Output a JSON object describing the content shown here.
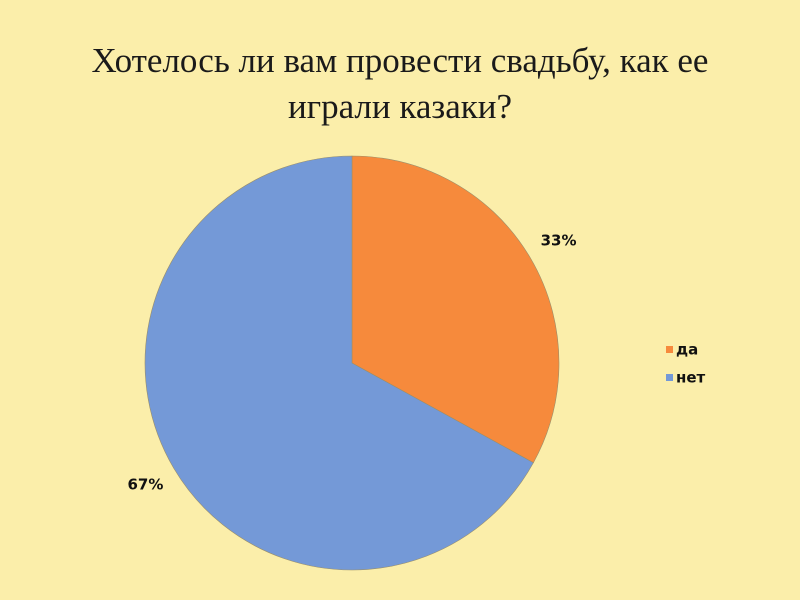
{
  "chart_data": {
    "type": "pie",
    "title": "Хотелось ли вам провести свадьбу, как ее играли казаки?",
    "categories": [
      "да",
      "нет"
    ],
    "values": [
      33,
      67
    ],
    "value_labels": [
      "33%",
      "67%"
    ],
    "colors": [
      "#f68a3c",
      "#7499d7"
    ],
    "legend": "right"
  }
}
